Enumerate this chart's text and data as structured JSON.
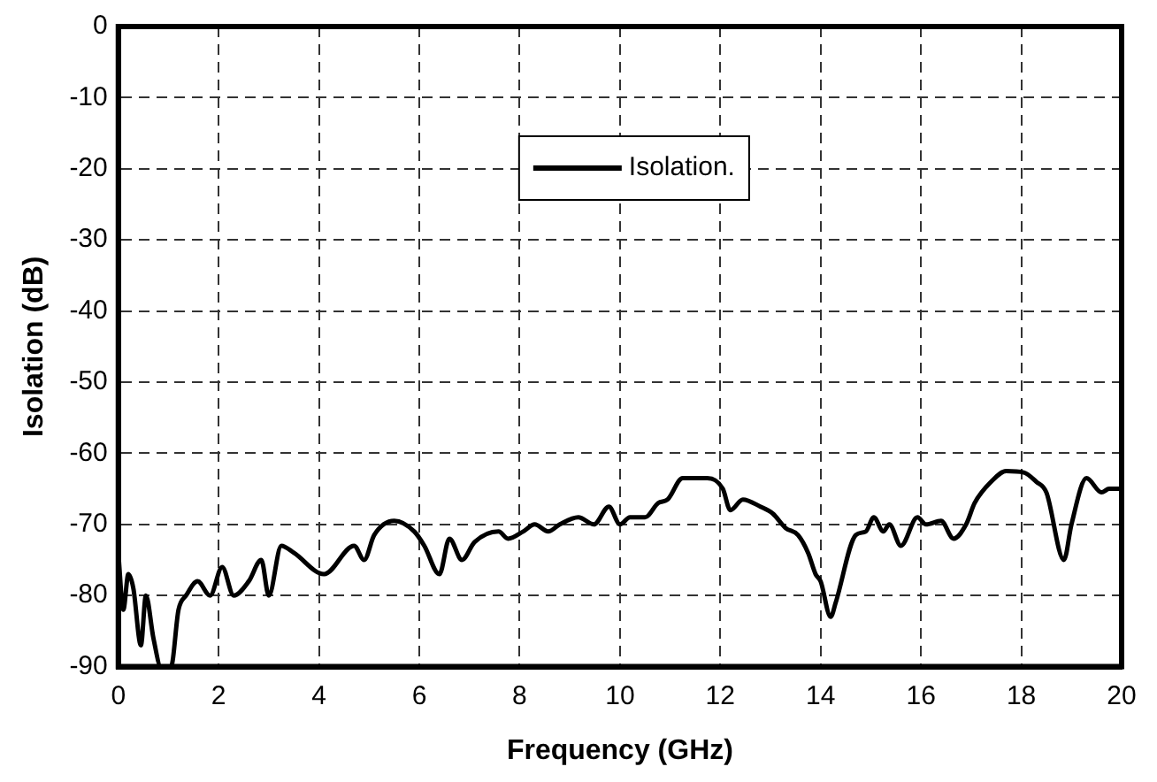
{
  "chart_data": {
    "type": "line",
    "xlabel": "Frequency (GHz)",
    "ylabel": "Isolation (dB)",
    "xlim": [
      0,
      20
    ],
    "xticks": [
      0,
      2,
      4,
      6,
      8,
      10,
      12,
      14,
      16,
      18,
      20
    ],
    "ylim": [
      -90,
      0
    ],
    "yticks": [
      -90,
      -80,
      -70,
      -60,
      -50,
      -40,
      -30,
      -20,
      -10,
      0
    ],
    "grid": true,
    "legend": "top",
    "marker": "none",
    "line_style": "solid",
    "series": [
      {
        "name": "Isolation.",
        "color": "#000000",
        "x": [
          0,
          0.1,
          0.2,
          0.3,
          0.45,
          0.55,
          0.7,
          0.85,
          1.05,
          1.2,
          1.35,
          1.58,
          1.83,
          2.07,
          2.3,
          2.6,
          2.85,
          3.0,
          3.25,
          3.5,
          4.1,
          4.7,
          4.9,
          5.1,
          5.5,
          5.9,
          6.1,
          6.4,
          6.6,
          6.85,
          7.1,
          7.58,
          7.77,
          8.07,
          8.3,
          8.57,
          8.8,
          9.17,
          9.48,
          9.78,
          10.0,
          10.2,
          10.5,
          10.76,
          10.95,
          11.25,
          11.74,
          12.05,
          12.2,
          12.45,
          12.8,
          13.05,
          13.3,
          13.55,
          13.75,
          13.9,
          14.0,
          14.2,
          14.3,
          14.7,
          14.9,
          15.06,
          15.25,
          15.37,
          15.6,
          15.93,
          16.1,
          16.4,
          16.65,
          16.9,
          17.07,
          17.4,
          17.7,
          18.05,
          18.3,
          18.5,
          18.85,
          19.0,
          19.3,
          19.6,
          19.75,
          20
        ],
        "values": [
          -74,
          -82,
          -77,
          -79,
          -87,
          -80,
          -86,
          -90,
          -90,
          -82,
          -80,
          -78,
          -80,
          -76,
          -80,
          -78,
          -75,
          -80,
          -73,
          -74,
          -77,
          -73,
          -75,
          -71.5,
          -69.5,
          -71,
          -73,
          -77,
          -72,
          -75,
          -72.5,
          -71,
          -72,
          -71,
          -70,
          -71,
          -70,
          -69,
          -70,
          -67.5,
          -70,
          -69,
          -69,
          -67,
          -66.5,
          -63.5,
          -63.5,
          -65,
          -68,
          -66.5,
          -67.5,
          -68.5,
          -70.5,
          -71.5,
          -74,
          -77,
          -78,
          -83,
          -81,
          -71.5,
          -71,
          -69,
          -71,
          -70,
          -73,
          -69,
          -70,
          -69.5,
          -72,
          -70,
          -67,
          -64,
          -62.5,
          -62.7,
          -64,
          -65.5,
          -75,
          -70,
          -63.5,
          -65.5,
          -65,
          -65
        ]
      }
    ]
  }
}
